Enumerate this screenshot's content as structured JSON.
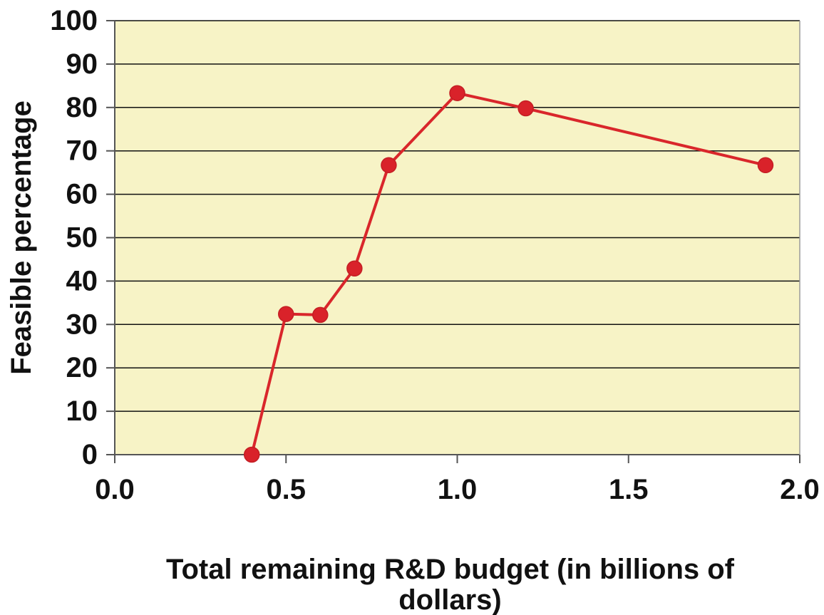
{
  "chart_data": {
    "type": "line",
    "title": "",
    "xlabel_lines": [
      "Total remaining R&D budget (in billions of",
      "dollars)"
    ],
    "ylabel": "Feasible percentage",
    "xlim": [
      0.0,
      2.0
    ],
    "ylim": [
      0,
      100
    ],
    "x_ticks": [
      "0.0",
      "0.5",
      "1.0",
      "1.5",
      "2.0"
    ],
    "y_ticks": [
      "0",
      "10",
      "20",
      "30",
      "40",
      "50",
      "60",
      "70",
      "80",
      "90",
      "100"
    ],
    "grid": "horizontal",
    "series": [
      {
        "x": [
          0.4,
          0.5,
          0.6,
          0.7,
          0.8,
          1.0,
          1.2,
          1.9
        ],
        "y": [
          0,
          32.4,
          32.2,
          42.9,
          66.7,
          83.3,
          79.8,
          66.7
        ]
      }
    ],
    "colors": {
      "plot_background": "#f7f3c6",
      "line": "#d9262b",
      "marker": "#d9222a",
      "gridline": "#111111",
      "axis": "#555555"
    }
  }
}
